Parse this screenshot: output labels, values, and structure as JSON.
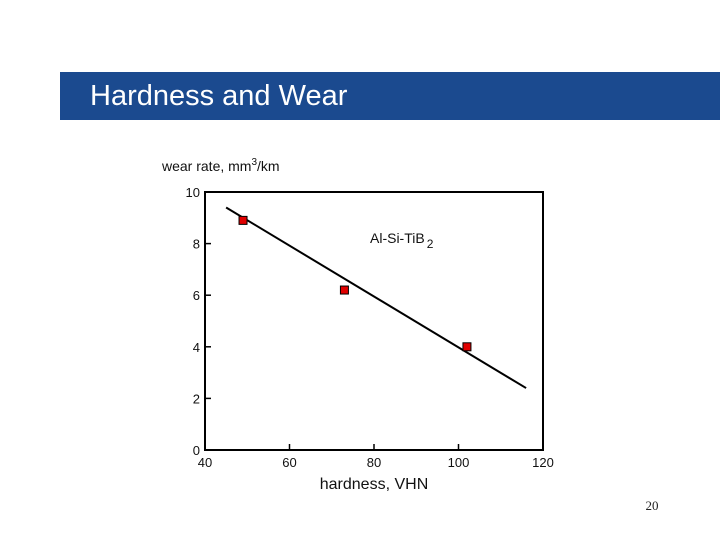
{
  "slide": {
    "title": "Hardness and Wear",
    "page_number": "20"
  },
  "chart_data": {
    "type": "scatter",
    "ylabel": "wear rate, mm",
    "ylabel_sup": "3",
    "ylabel_suffix": "/km",
    "xlabel": "hardness, VHN",
    "annotation": "Al-Si-TiB",
    "annotation_sub": "2",
    "xlim": [
      40,
      120
    ],
    "ylim": [
      0,
      10
    ],
    "x_ticks": [
      40,
      60,
      80,
      100,
      120
    ],
    "y_ticks": [
      0,
      2,
      4,
      6,
      8,
      10
    ],
    "grid": false,
    "series": [
      {
        "marker": "square",
        "color": "#e00000",
        "points": [
          {
            "x": 49,
            "y": 8.9
          },
          {
            "x": 73,
            "y": 6.2
          },
          {
            "x": 102,
            "y": 4.0
          }
        ]
      }
    ],
    "trend_line": {
      "color": "#000000",
      "points": [
        {
          "x": 45,
          "y": 9.4
        },
        {
          "x": 116,
          "y": 2.4
        }
      ]
    }
  }
}
